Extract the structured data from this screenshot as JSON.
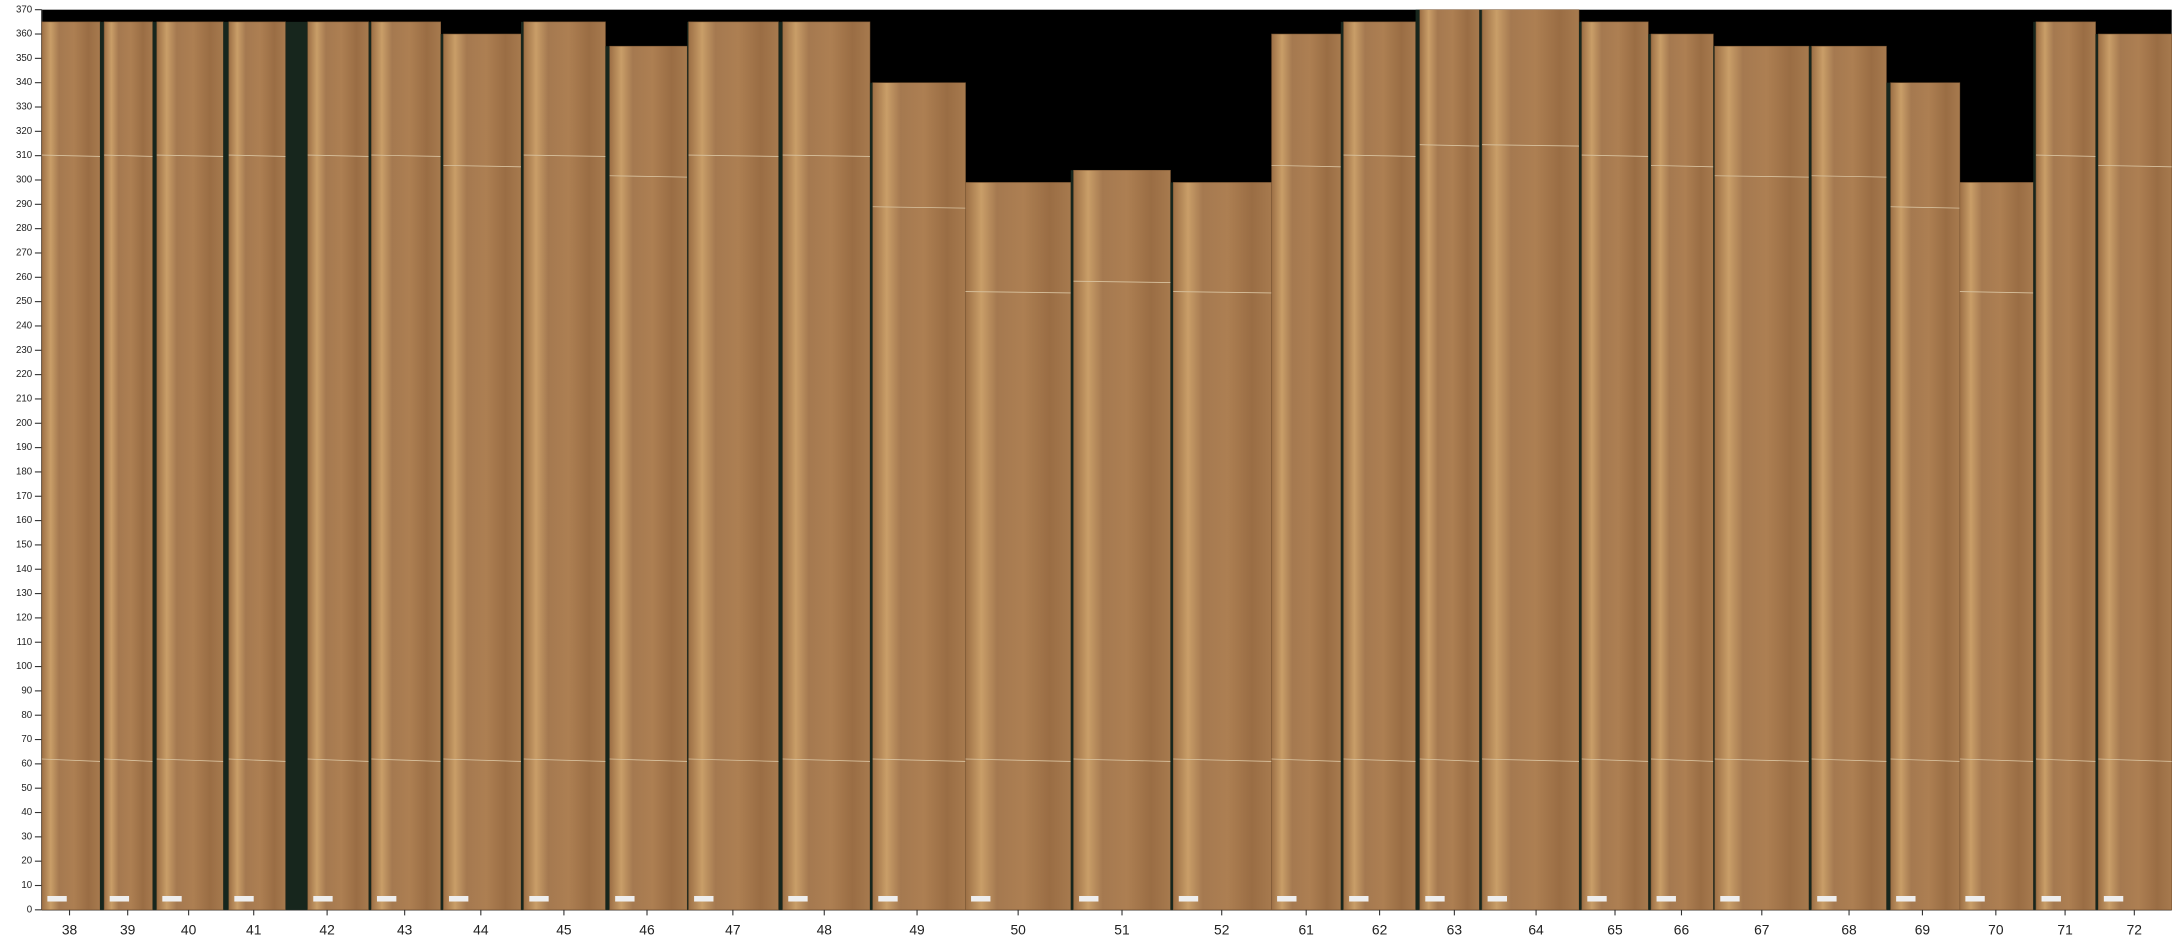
{
  "chart_data": {
    "type": "bar",
    "categories": [
      "38",
      "39",
      "40",
      "41",
      "42",
      "43",
      "44",
      "45",
      "46",
      "47",
      "48",
      "49",
      "50",
      "51",
      "52",
      "61",
      "62",
      "63",
      "64",
      "65",
      "66",
      "67",
      "68",
      "69",
      "70",
      "71",
      "72"
    ],
    "values": [
      365,
      365,
      365,
      365,
      365,
      365,
      360,
      365,
      355,
      365,
      365,
      340,
      299,
      304,
      299,
      360,
      365,
      370,
      370,
      365,
      360,
      355,
      355,
      340,
      299,
      365,
      360
    ],
    "color": "#a87a4c",
    "ylim": [
      0,
      370
    ],
    "yticks": [
      0,
      10,
      20,
      30,
      40,
      50,
      60,
      70,
      80,
      90,
      100,
      110,
      120,
      130,
      140,
      150,
      160,
      170,
      180,
      190,
      200,
      210,
      220,
      230,
      240,
      250,
      260,
      270,
      280,
      290,
      300,
      310,
      320,
      330,
      340,
      350,
      360,
      370
    ]
  }
}
